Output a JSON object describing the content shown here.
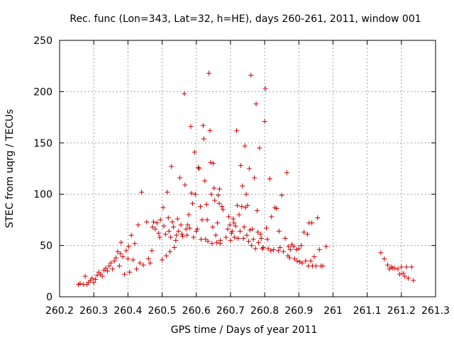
{
  "chart_data": {
    "type": "scatter",
    "title": "Rec. func (Lon=343, Lat=32, h=HE), days 260-261, 2011, window 001",
    "xlabel": "GPS time / Days of year 2011",
    "ylabel": "STEC from uqrg / TECUs",
    "xlim": [
      260.2,
      261.3
    ],
    "ylim": [
      0,
      250
    ],
    "xticks": [
      260.2,
      260.3,
      260.4,
      260.5,
      260.6,
      260.7,
      260.8,
      260.9,
      261,
      261.1,
      261.2,
      261.3
    ],
    "xtick_labels": [
      "260.2",
      "260.3",
      "260.4",
      "260.5",
      "260.6",
      "260.7",
      "260.8",
      "260.9",
      "261",
      "261.1",
      "261.2",
      "261.3"
    ],
    "yticks": [
      0,
      50,
      100,
      150,
      200,
      250
    ],
    "ytick_labels": [
      "0",
      "50",
      "100",
      "150",
      "200",
      "250"
    ],
    "grid": true,
    "marker": "plus",
    "color": "#cc0000",
    "points": [
      [
        260.255,
        12
      ],
      [
        260.26,
        13
      ],
      [
        260.27,
        12
      ],
      [
        260.275,
        20
      ],
      [
        260.28,
        12
      ],
      [
        260.285,
        14
      ],
      [
        260.29,
        16
      ],
      [
        260.295,
        18
      ],
      [
        260.3,
        14
      ],
      [
        260.305,
        17
      ],
      [
        260.31,
        21
      ],
      [
        260.315,
        24
      ],
      [
        260.32,
        22
      ],
      [
        260.325,
        20
      ],
      [
        260.33,
        26
      ],
      [
        260.335,
        28
      ],
      [
        260.34,
        25
      ],
      [
        260.345,
        30
      ],
      [
        260.35,
        33
      ],
      [
        260.355,
        27
      ],
      [
        260.36,
        35
      ],
      [
        260.365,
        38
      ],
      [
        260.37,
        44
      ],
      [
        260.375,
        30
      ],
      [
        260.378,
        42
      ],
      [
        260.38,
        53
      ],
      [
        260.385,
        39
      ],
      [
        260.39,
        22
      ],
      [
        260.395,
        45
      ],
      [
        260.4,
        37
      ],
      [
        260.402,
        49
      ],
      [
        260.405,
        24
      ],
      [
        260.41,
        60
      ],
      [
        260.415,
        36
      ],
      [
        260.42,
        52
      ],
      [
        260.425,
        27
      ],
      [
        260.43,
        70
      ],
      [
        260.435,
        33
      ],
      [
        260.44,
        102
      ],
      [
        260.445,
        31
      ],
      [
        260.455,
        73
      ],
      [
        260.46,
        37
      ],
      [
        260.465,
        33
      ],
      [
        260.47,
        45
      ],
      [
        260.472,
        68
      ],
      [
        260.475,
        73
      ],
      [
        260.48,
        66
      ],
      [
        260.485,
        72
      ],
      [
        260.49,
        62
      ],
      [
        260.493,
        58
      ],
      [
        260.495,
        75
      ],
      [
        260.5,
        36
      ],
      [
        260.503,
        87
      ],
      [
        260.505,
        69
      ],
      [
        260.51,
        61
      ],
      [
        260.512,
        40
      ],
      [
        260.515,
        102
      ],
      [
        260.518,
        77
      ],
      [
        260.52,
        64
      ],
      [
        260.523,
        44
      ],
      [
        260.525,
        58
      ],
      [
        260.527,
        127
      ],
      [
        260.53,
        73
      ],
      [
        260.533,
        68
      ],
      [
        260.536,
        48
      ],
      [
        260.54,
        55
      ],
      [
        260.542,
        60
      ],
      [
        260.545,
        76
      ],
      [
        260.548,
        64
      ],
      [
        260.552,
        116
      ],
      [
        260.555,
        70
      ],
      [
        260.558,
        61
      ],
      [
        260.56,
        59
      ],
      [
        260.565,
        198
      ],
      [
        260.567,
        109
      ],
      [
        260.57,
        66
      ],
      [
        260.573,
        60
      ],
      [
        260.575,
        70
      ],
      [
        260.578,
        80
      ],
      [
        260.581,
        67
      ],
      [
        260.584,
        166
      ],
      [
        260.586,
        101
      ],
      [
        260.589,
        91
      ],
      [
        260.592,
        58
      ],
      [
        260.595,
        141
      ],
      [
        260.597,
        100
      ],
      [
        260.6,
        64
      ],
      [
        260.603,
        66
      ],
      [
        260.606,
        126
      ],
      [
        260.608,
        125
      ],
      [
        260.612,
        88
      ],
      [
        260.614,
        56
      ],
      [
        260.617,
        75
      ],
      [
        260.62,
        167
      ],
      [
        260.622,
        154
      ],
      [
        260.625,
        113
      ],
      [
        260.627,
        56
      ],
      [
        260.63,
        90
      ],
      [
        260.632,
        75
      ],
      [
        260.634,
        54
      ],
      [
        260.637,
        218
      ],
      [
        260.64,
        162
      ],
      [
        260.642,
        131
      ],
      [
        260.644,
        100
      ],
      [
        260.646,
        52
      ],
      [
        260.648,
        68
      ],
      [
        260.65,
        130
      ],
      [
        260.652,
        106
      ],
      [
        260.654,
        94
      ],
      [
        260.657,
        60
      ],
      [
        260.66,
        53
      ],
      [
        260.662,
        72
      ],
      [
        260.664,
        99
      ],
      [
        260.667,
        91
      ],
      [
        260.668,
        105
      ],
      [
        260.67,
        55
      ],
      [
        260.67,
        52
      ],
      [
        260.675,
        88
      ],
      [
        260.678,
        85
      ],
      [
        260.687,
        58
      ],
      [
        260.692,
        66
      ],
      [
        260.695,
        78
      ],
      [
        260.698,
        70
      ],
      [
        260.7,
        55
      ],
      [
        260.703,
        62
      ],
      [
        260.705,
        64
      ],
      [
        260.708,
        76
      ],
      [
        260.71,
        72
      ],
      [
        260.712,
        58
      ],
      [
        260.715,
        69
      ],
      [
        260.718,
        162
      ],
      [
        260.72,
        89
      ],
      [
        260.722,
        57
      ],
      [
        260.725,
        80
      ],
      [
        260.728,
        64
      ],
      [
        260.73,
        128
      ],
      [
        260.733,
        88
      ],
      [
        260.735,
        108
      ],
      [
        260.738,
        57
      ],
      [
        260.74,
        68
      ],
      [
        260.742,
        147
      ],
      [
        260.744,
        87
      ],
      [
        260.746,
        100
      ],
      [
        260.748,
        60
      ],
      [
        260.75,
        89
      ],
      [
        260.753,
        54
      ],
      [
        260.755,
        125
      ],
      [
        260.757,
        65
      ],
      [
        260.76,
        216
      ],
      [
        260.762,
        50
      ],
      [
        260.764,
        66
      ],
      [
        260.767,
        56
      ],
      [
        260.77,
        116
      ],
      [
        260.773,
        47
      ],
      [
        260.775,
        188
      ],
      [
        260.778,
        84
      ],
      [
        260.78,
        63
      ],
      [
        260.782,
        53
      ],
      [
        260.785,
        145
      ],
      [
        260.788,
        61
      ],
      [
        260.79,
        57
      ],
      [
        260.793,
        47
      ],
      [
        260.796,
        48
      ],
      [
        260.8,
        171
      ],
      [
        260.802,
        203
      ],
      [
        260.805,
        67
      ],
      [
        260.808,
        56
      ],
      [
        260.81,
        47
      ],
      [
        260.815,
        115
      ],
      [
        260.818,
        45
      ],
      [
        260.82,
        78
      ],
      [
        260.826,
        46
      ],
      [
        260.83,
        87
      ],
      [
        260.835,
        86
      ],
      [
        260.84,
        45
      ],
      [
        260.842,
        64
      ],
      [
        260.845,
        48
      ],
      [
        260.85,
        99
      ],
      [
        260.855,
        44
      ],
      [
        260.86,
        57
      ],
      [
        260.865,
        121
      ],
      [
        260.868,
        40
      ],
      [
        260.87,
        49
      ],
      [
        260.873,
        38
      ],
      [
        260.875,
        46
      ],
      [
        260.88,
        51
      ],
      [
        260.885,
        49
      ],
      [
        260.888,
        37
      ],
      [
        260.893,
        46
      ],
      [
        260.895,
        35
      ],
      [
        260.9,
        47
      ],
      [
        260.903,
        34
      ],
      [
        260.907,
        50
      ],
      [
        260.91,
        33
      ],
      [
        260.915,
        63
      ],
      [
        260.92,
        35
      ],
      [
        260.925,
        61
      ],
      [
        260.928,
        30
      ],
      [
        260.93,
        72
      ],
      [
        260.935,
        35
      ],
      [
        260.938,
        72
      ],
      [
        260.94,
        30
      ],
      [
        260.945,
        39
      ],
      [
        260.95,
        30
      ],
      [
        260.955,
        77
      ],
      [
        260.96,
        46
      ],
      [
        260.965,
        30
      ],
      [
        260.97,
        30
      ],
      [
        260.98,
        49
      ],
      [
        261.14,
        43
      ],
      [
        261.15,
        37
      ],
      [
        261.16,
        31
      ],
      [
        261.165,
        27
      ],
      [
        261.17,
        29
      ],
      [
        261.175,
        28
      ],
      [
        261.18,
        28
      ],
      [
        261.19,
        27
      ],
      [
        261.195,
        22
      ],
      [
        261.2,
        29
      ],
      [
        261.205,
        23
      ],
      [
        261.21,
        20
      ],
      [
        261.215,
        29
      ],
      [
        261.22,
        18
      ],
      [
        261.23,
        29
      ],
      [
        261.235,
        16
      ]
    ]
  }
}
